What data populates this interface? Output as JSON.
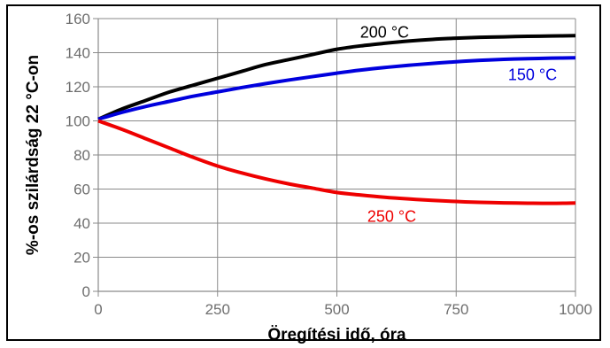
{
  "chart_data": {
    "type": "line",
    "title": "",
    "xlabel": "Öregítési idő, óra",
    "ylabel": "%-os szilárdság 22 °C-on",
    "xlim": [
      0,
      1000
    ],
    "ylim": [
      0,
      160
    ],
    "xticks": [
      0,
      250,
      500,
      750,
      1000
    ],
    "yticks": [
      0,
      20,
      40,
      60,
      80,
      100,
      120,
      140,
      160
    ],
    "xtick_labels": [
      "0",
      "250",
      "500",
      "750",
      "1000"
    ],
    "ytick_labels": [
      "0",
      "20",
      "40",
      "60",
      "80",
      "100",
      "120",
      "140",
      "160"
    ],
    "grid": true,
    "legend": "none",
    "series": [
      {
        "name": "200 °C",
        "color": "#000000",
        "label_anchor": [
          600,
          152
        ],
        "x": [
          0,
          50,
          100,
          150,
          200,
          250,
          300,
          350,
          400,
          450,
          500,
          550,
          600,
          650,
          700,
          750,
          800,
          850,
          900,
          950,
          1000
        ],
        "y": [
          101,
          107,
          112,
          117,
          121,
          125,
          129,
          133,
          136,
          139,
          142,
          144,
          145.5,
          146.8,
          147.8,
          148.5,
          149,
          149.3,
          149.6,
          149.8,
          150
        ]
      },
      {
        "name": "150 °C",
        "color": "#0000dd",
        "label_anchor": [
          910,
          127
        ],
        "x": [
          0,
          50,
          100,
          150,
          200,
          250,
          300,
          350,
          400,
          450,
          500,
          550,
          600,
          650,
          700,
          750,
          800,
          850,
          900,
          950,
          1000
        ],
        "y": [
          101,
          105,
          108.5,
          111.5,
          114.5,
          117,
          119.5,
          121.8,
          124,
          126,
          128,
          129.8,
          131.3,
          132.6,
          133.7,
          134.7,
          135.5,
          136.1,
          136.5,
          136.8,
          137
        ]
      },
      {
        "name": "250 °C",
        "color": "#ee0000",
        "label_anchor": [
          615,
          44
        ],
        "x": [
          0,
          50,
          100,
          150,
          200,
          250,
          300,
          350,
          400,
          450,
          500,
          550,
          600,
          650,
          700,
          750,
          800,
          850,
          900,
          950,
          1000
        ],
        "y": [
          100,
          95,
          89.5,
          84,
          78.5,
          73.5,
          69.5,
          66,
          63,
          60.5,
          58,
          56.5,
          55.2,
          54.2,
          53.4,
          52.7,
          52.2,
          51.9,
          51.7,
          51.6,
          51.8
        ]
      }
    ]
  }
}
